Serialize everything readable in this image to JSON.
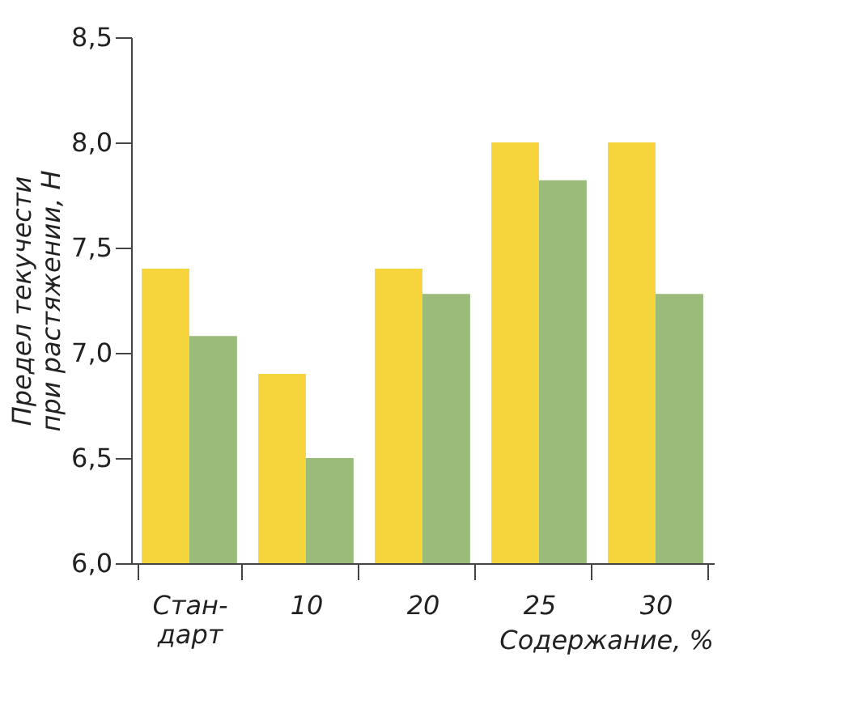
{
  "chart_data": {
    "type": "bar",
    "categories": [
      "Стан-\nдарт",
      "10",
      "20",
      "25",
      "30"
    ],
    "series": [
      {
        "color": "#f6d43b",
        "values": [
          7.4,
          6.9,
          7.4,
          8.0,
          8.0
        ]
      },
      {
        "color": "#9bbb7b",
        "values": [
          7.08,
          6.5,
          7.28,
          7.82,
          7.28
        ]
      }
    ],
    "ylabel": "Предел текучести\nпри растяжении, Н",
    "xlabel": "Содержание, %",
    "ylim": [
      6.0,
      8.5
    ],
    "yticks": [
      {
        "value": 6.0,
        "label": "6,0"
      },
      {
        "value": 6.5,
        "label": "6,5"
      },
      {
        "value": 7.0,
        "label": "7,0"
      },
      {
        "value": 7.5,
        "label": "7,5"
      },
      {
        "value": 8.0,
        "label": "8,0"
      },
      {
        "value": 8.5,
        "label": "8,5"
      }
    ],
    "grid": false,
    "legend": false
  }
}
